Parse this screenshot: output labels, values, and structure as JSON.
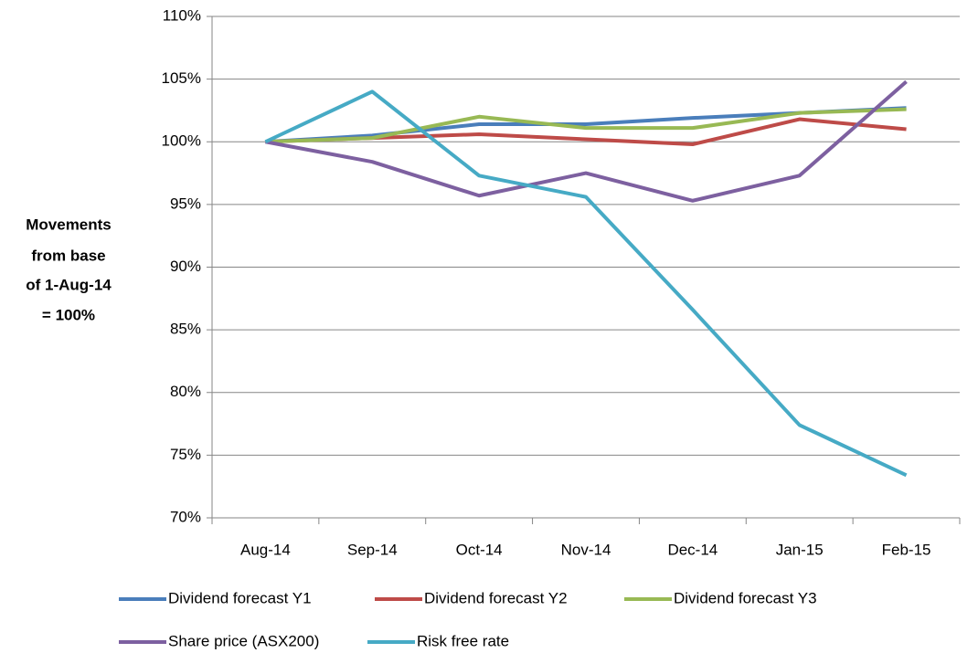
{
  "chart_data": {
    "type": "line",
    "y_label": [
      "Movements",
      "from base",
      "of 1-Aug-14",
      "= 100%"
    ],
    "categories": [
      "Aug-14",
      "Sep-14",
      "Oct-14",
      "Nov-14",
      "Dec-14",
      "Jan-15",
      "Feb-15"
    ],
    "series": [
      {
        "name": "Dividend forecast Y1",
        "color": "#4a7ebb",
        "values": [
          100,
          100.5,
          101.4,
          101.4,
          101.9,
          102.3,
          102.7
        ]
      },
      {
        "name": "Dividend forecast Y2",
        "color": "#be4b48",
        "values": [
          100,
          100.3,
          100.6,
          100.2,
          99.8,
          101.8,
          101.0
        ]
      },
      {
        "name": "Dividend forecast Y3",
        "color": "#98b954",
        "values": [
          100,
          100.3,
          102.0,
          101.1,
          101.1,
          102.3,
          102.6
        ]
      },
      {
        "name": "Share price (ASX200)",
        "color": "#7d60a0",
        "values": [
          100,
          98.4,
          95.7,
          97.5,
          95.3,
          97.3,
          104.8
        ]
      },
      {
        "name": "Risk free rate",
        "color": "#46aac5",
        "values": [
          100,
          104.0,
          97.3,
          95.6,
          86.6,
          77.4,
          73.4
        ]
      }
    ],
    "ylim": [
      70,
      110
    ],
    "yticks": [
      {
        "value": 70,
        "label": "70%"
      },
      {
        "value": 75,
        "label": "75%"
      },
      {
        "value": 80,
        "label": "80%"
      },
      {
        "value": 85,
        "label": "85%"
      },
      {
        "value": 90,
        "label": "90%"
      },
      {
        "value": 95,
        "label": "95%"
      },
      {
        "value": 100,
        "label": "100%"
      },
      {
        "value": 105,
        "label": "105%"
      },
      {
        "value": 110,
        "label": "110%"
      }
    ],
    "grid": true
  }
}
